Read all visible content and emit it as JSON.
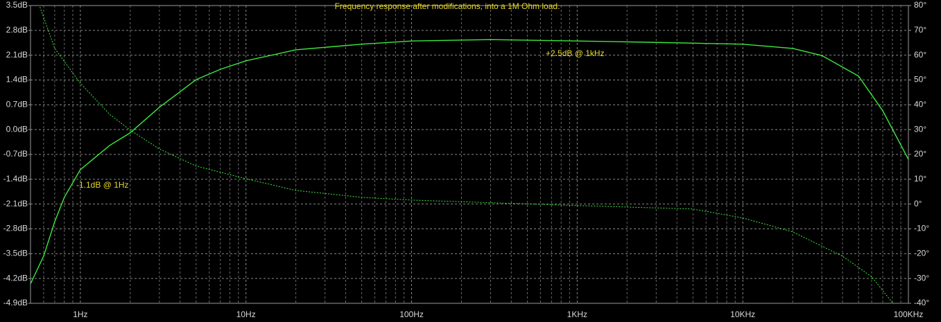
{
  "chart_data": {
    "type": "line",
    "title": "Frequency response after modifications, into a 1M Ohm load.",
    "annotations": [
      "+2.5dB @ 1kHz",
      "-1.1dB @ 1Hz"
    ],
    "xlog": true,
    "grid": true,
    "xlim": [
      0.5,
      100000
    ],
    "xticks": [
      {
        "value": 1,
        "label": "1Hz"
      },
      {
        "value": 10,
        "label": "10Hz"
      },
      {
        "value": 100,
        "label": "100Hz"
      },
      {
        "value": 1000,
        "label": "1KHz"
      },
      {
        "value": 10000,
        "label": "10KHz"
      },
      {
        "value": 100000,
        "label": "100KHz"
      }
    ],
    "xminor_ticks": [
      0.6,
      0.7,
      0.8,
      0.9,
      2,
      3,
      4,
      5,
      6,
      7,
      8,
      9,
      20,
      30,
      40,
      50,
      60,
      70,
      80,
      90,
      200,
      300,
      400,
      500,
      600,
      700,
      800,
      900,
      2000,
      3000,
      4000,
      5000,
      6000,
      7000,
      8000,
      9000,
      20000,
      30000,
      40000,
      50000,
      60000,
      70000,
      80000,
      90000
    ],
    "ylim": [
      -4.9,
      3.5
    ],
    "yticks": [
      {
        "value": 3.5,
        "label": "3.5dB"
      },
      {
        "value": 2.8,
        "label": "2.8dB"
      },
      {
        "value": 2.1,
        "label": "2.1dB"
      },
      {
        "value": 1.4,
        "label": "1.4dB"
      },
      {
        "value": 0.7,
        "label": "0.7dB"
      },
      {
        "value": 0,
        "label": "0.0dB"
      },
      {
        "value": -0.7,
        "label": "-0.7dB"
      },
      {
        "value": -1.4,
        "label": "-1.4dB"
      },
      {
        "value": -2.1,
        "label": "-2.1dB"
      },
      {
        "value": -2.8,
        "label": "-2.8dB"
      },
      {
        "value": -3.5,
        "label": "-3.5dB"
      },
      {
        "value": -4.2,
        "label": "-4.2dB"
      },
      {
        "value": -4.9,
        "label": "-4.9dB"
      }
    ],
    "y2lim": [
      -40,
      80
    ],
    "y2ticks": [
      {
        "value": 80,
        "label": "80°"
      },
      {
        "value": 70,
        "label": "70°"
      },
      {
        "value": 60,
        "label": "60°"
      },
      {
        "value": 50,
        "label": "50°"
      },
      {
        "value": 40,
        "label": "40°"
      },
      {
        "value": 30,
        "label": "30°"
      },
      {
        "value": 20,
        "label": "20°"
      },
      {
        "value": 10,
        "label": "10°"
      },
      {
        "value": 0,
        "label": "0°"
      },
      {
        "value": -10,
        "label": "-10°"
      },
      {
        "value": -20,
        "label": "-20°"
      },
      {
        "value": -30,
        "label": "-30°"
      },
      {
        "value": -40,
        "label": "-40°"
      }
    ],
    "series": [
      {
        "color": "#3ee83e",
        "dash": false,
        "axis": "y",
        "x": [
          0.5,
          0.6,
          0.7,
          0.8,
          1,
          1.5,
          2,
          3,
          5,
          7,
          10,
          20,
          50,
          100,
          300,
          1000,
          3000,
          10000,
          20000,
          30000,
          50000,
          70000,
          100000
        ],
        "values": [
          -4.35,
          -3.57,
          -2.6,
          -1.91,
          -1.13,
          -0.45,
          -0.09,
          0.63,
          1.41,
          1.7,
          1.94,
          2.25,
          2.41,
          2.5,
          2.54,
          2.5,
          2.46,
          2.41,
          2.29,
          2.09,
          1.51,
          0.53,
          -0.84
        ]
      },
      {
        "color": "#3ee83e",
        "dash": true,
        "axis": "y2",
        "x": [
          0.57,
          0.7,
          1,
          1.5,
          2,
          3,
          5,
          10,
          20,
          50,
          100,
          1000,
          5000,
          10000,
          20000,
          40000,
          60000,
          80000
        ],
        "values": [
          79.4,
          62.7,
          48.7,
          36.2,
          29.8,
          22.2,
          15.3,
          10.2,
          5.5,
          2.7,
          1.6,
          -0.6,
          -2,
          -5.6,
          -11.2,
          -21,
          -29.3,
          -39.7
        ]
      }
    ]
  }
}
